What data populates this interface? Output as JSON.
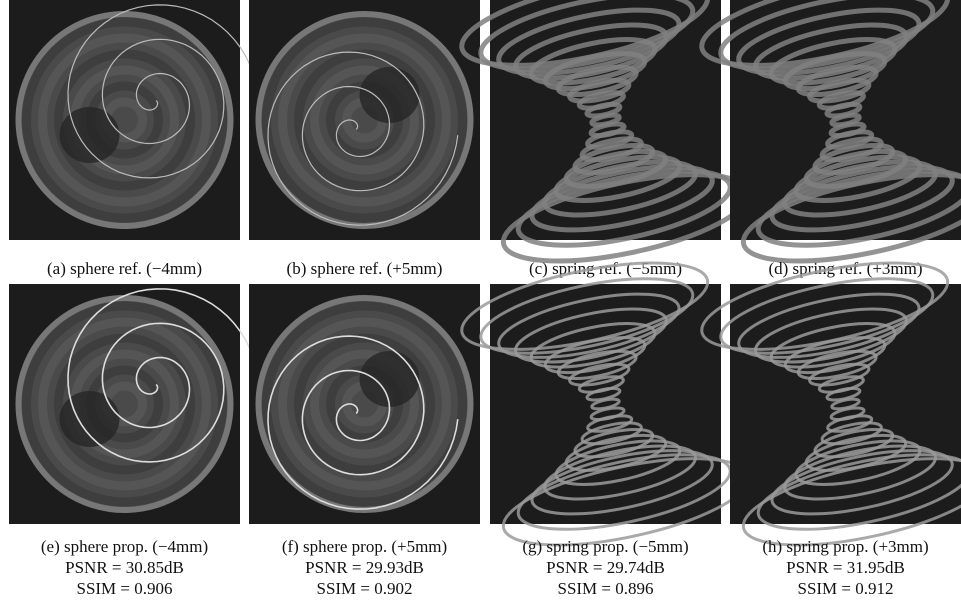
{
  "panels": [
    {
      "caption": "(a) sphere ref. (−4mm)"
    },
    {
      "caption": "(b) sphere ref. (+5mm)"
    },
    {
      "caption": "(c) spring ref. (−5mm)"
    },
    {
      "caption": "(d) spring ref. (+3mm)"
    },
    {
      "caption": "(e) sphere prop. (−4mm)",
      "psnr": "PSNR = 30.85dB",
      "ssim": "SSIM = 0.906"
    },
    {
      "caption": "(f) sphere prop. (+5mm)",
      "psnr": "PSNR = 29.93dB",
      "ssim": "SSIM = 0.902"
    },
    {
      "caption": "(g) spring prop. (−5mm)",
      "psnr": "PSNR = 29.74dB",
      "ssim": "SSIM = 0.896"
    },
    {
      "caption": "(h) spring prop. (+3mm)",
      "psnr": "PSNR = 31.95dB",
      "ssim": "SSIM = 0.912"
    }
  ]
}
